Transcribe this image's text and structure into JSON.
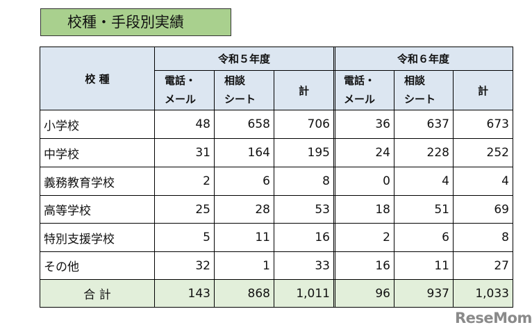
{
  "title": "校種・手段別実績",
  "table": {
    "corner": "校 種",
    "groups": [
      "令和５年度",
      "令和６年度"
    ],
    "subheaders": [
      [
        "電話・",
        "メール"
      ],
      [
        "相談",
        "シート"
      ],
      [
        "計"
      ],
      [
        "電話・",
        "メール"
      ],
      [
        "相談",
        "シート"
      ],
      [
        "計"
      ]
    ],
    "rows": [
      [
        "小学校",
        "48",
        "658",
        "706",
        "36",
        "637",
        "673"
      ],
      [
        "中学校",
        "31",
        "164",
        "195",
        "24",
        "228",
        "252"
      ],
      [
        "義務教育学校",
        "2",
        "6",
        "8",
        "0",
        "4",
        "4"
      ],
      [
        "高等学校",
        "25",
        "28",
        "53",
        "18",
        "51",
        "69"
      ],
      [
        "特別支援学校",
        "5",
        "11",
        "16",
        "2",
        "6",
        "8"
      ],
      [
        "その他",
        "32",
        "1",
        "33",
        "16",
        "11",
        "27"
      ]
    ],
    "total": [
      "合 計",
      "143",
      "868",
      "1,011",
      "96",
      "937",
      "1,033"
    ]
  },
  "watermark": "ReseMom"
}
